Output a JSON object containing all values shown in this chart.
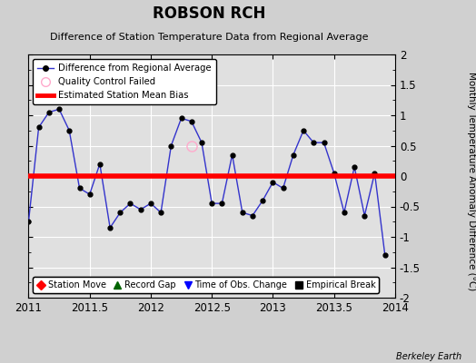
{
  "title": "ROBSON RCH",
  "subtitle": "Difference of Station Temperature Data from Regional Average",
  "ylabel": "Monthly Temperature Anomaly Difference (°C)",
  "xlim": [
    2011.0,
    2014.0
  ],
  "ylim": [
    -2.0,
    2.0
  ],
  "xticks": [
    2011,
    2011.5,
    2012,
    2012.5,
    2013,
    2013.5,
    2014
  ],
  "xtick_labels": [
    "2011",
    "2011.5",
    "2012",
    "2012.5",
    "2013",
    "2013.5",
    "2014"
  ],
  "yticks": [
    -2,
    -1.5,
    -1,
    -0.5,
    0,
    0.5,
    1,
    1.5,
    2
  ],
  "ytick_labels": [
    "-2",
    "-1.5",
    "-1",
    "-0.5",
    "0",
    "0.5",
    "1",
    "1.5",
    "2"
  ],
  "mean_bias": 0.0,
  "line_color": "#3333cc",
  "marker_color": "black",
  "bias_color": "red",
  "bg_color": "#e0e0e0",
  "fig_color": "#d0d0d0",
  "grid_color": "white",
  "watermark": "Berkeley Earth",
  "x_data": [
    2011.0,
    2011.083,
    2011.167,
    2011.25,
    2011.333,
    2011.417,
    2011.5,
    2011.583,
    2011.667,
    2011.75,
    2011.833,
    2011.917,
    2012.0,
    2012.083,
    2012.167,
    2012.25,
    2012.333,
    2012.417,
    2012.5,
    2012.583,
    2012.667,
    2012.75,
    2012.833,
    2012.917,
    2013.0,
    2013.083,
    2013.167,
    2013.25,
    2013.333,
    2013.417,
    2013.5,
    2013.583,
    2013.667,
    2013.75,
    2013.833,
    2013.917
  ],
  "y_data": [
    -0.75,
    0.8,
    1.05,
    1.1,
    0.75,
    -0.2,
    -0.3,
    0.2,
    -0.85,
    -0.6,
    -0.45,
    -0.55,
    -0.45,
    -0.6,
    0.5,
    0.95,
    0.9,
    0.55,
    -0.45,
    -0.45,
    0.35,
    -0.6,
    -0.65,
    -0.4,
    -0.1,
    -0.2,
    0.35,
    0.75,
    0.55,
    0.55,
    0.05,
    -0.6,
    0.15,
    -0.65,
    0.05,
    -1.3
  ],
  "qc_failed_x": [
    2012.333
  ],
  "qc_failed_y": [
    0.5
  ]
}
